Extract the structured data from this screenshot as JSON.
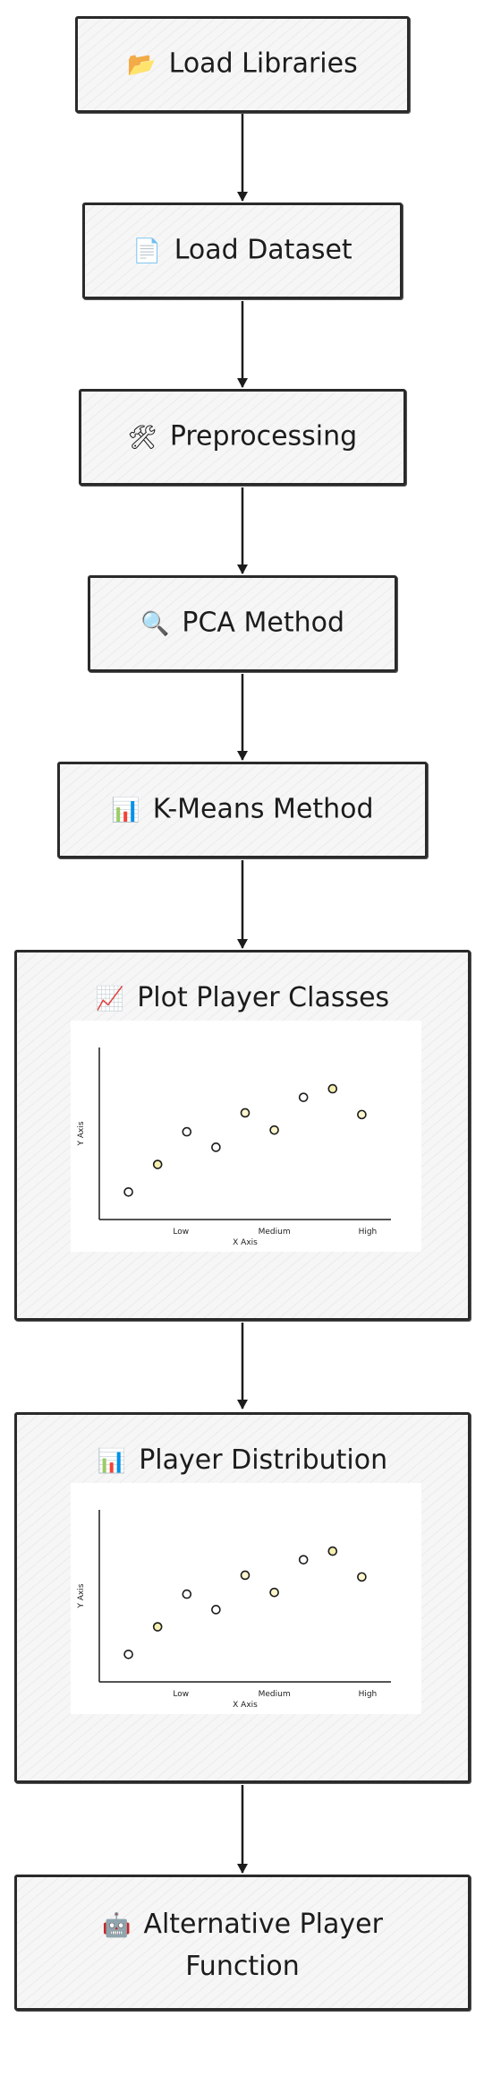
{
  "nodes": {
    "load_libraries": {
      "icon": "📂",
      "label": "Load Libraries"
    },
    "load_dataset": {
      "icon": "📄",
      "label": "Load Dataset"
    },
    "preprocessing": {
      "icon": "🛠",
      "label": "Preprocessing"
    },
    "pca": {
      "icon": "🔍",
      "label": "PCA Method"
    },
    "kmeans": {
      "icon": "📊",
      "label": "K-Means Method"
    },
    "plot_classes": {
      "icon": "📈",
      "label": "Plot Player Classes"
    },
    "distribution": {
      "icon": "📊",
      "label": "Player Distribution"
    },
    "alternative": {
      "icon": "🤖",
      "label_line1": "Alternative Player",
      "label_line2": "Function"
    }
  },
  "chart_data": [
    {
      "type": "scatter",
      "title": "",
      "xlabel": "X Axis",
      "ylabel": "Y Axis",
      "x_ticks": [
        "Low",
        "Medium",
        "High"
      ],
      "xlim": [
        0,
        10
      ],
      "ylim": [
        0,
        10
      ],
      "grid": false,
      "points": [
        {
          "x": 1.0,
          "y": 1.6,
          "color": "#ffffff"
        },
        {
          "x": 2.0,
          "y": 3.2,
          "color": "#f6f0b0"
        },
        {
          "x": 3.0,
          "y": 5.1,
          "color": "#ffffff"
        },
        {
          "x": 4.0,
          "y": 4.2,
          "color": "#ffffff"
        },
        {
          "x": 5.0,
          "y": 6.2,
          "color": "#fff7cc"
        },
        {
          "x": 6.0,
          "y": 5.2,
          "color": "#fff7cc"
        },
        {
          "x": 7.0,
          "y": 7.1,
          "color": "#ffffff"
        },
        {
          "x": 8.0,
          "y": 7.6,
          "color": "#f6f0b0"
        },
        {
          "x": 9.0,
          "y": 6.1,
          "color": "#fff7cc"
        }
      ]
    },
    {
      "type": "scatter",
      "title": "",
      "xlabel": "X Axis",
      "ylabel": "Y Axis",
      "x_ticks": [
        "Low",
        "Medium",
        "High"
      ],
      "xlim": [
        0,
        10
      ],
      "ylim": [
        0,
        10
      ],
      "grid": false,
      "points": [
        {
          "x": 1.0,
          "y": 1.6,
          "color": "#ffffff"
        },
        {
          "x": 2.0,
          "y": 3.2,
          "color": "#f6f0b0"
        },
        {
          "x": 3.0,
          "y": 5.1,
          "color": "#ffffff"
        },
        {
          "x": 4.0,
          "y": 4.2,
          "color": "#ffffff"
        },
        {
          "x": 5.0,
          "y": 6.2,
          "color": "#fff7cc"
        },
        {
          "x": 6.0,
          "y": 5.2,
          "color": "#fff7cc"
        },
        {
          "x": 7.0,
          "y": 7.1,
          "color": "#ffffff"
        },
        {
          "x": 8.0,
          "y": 7.6,
          "color": "#f6f0b0"
        },
        {
          "x": 9.0,
          "y": 6.1,
          "color": "#fff7cc"
        }
      ]
    }
  ]
}
